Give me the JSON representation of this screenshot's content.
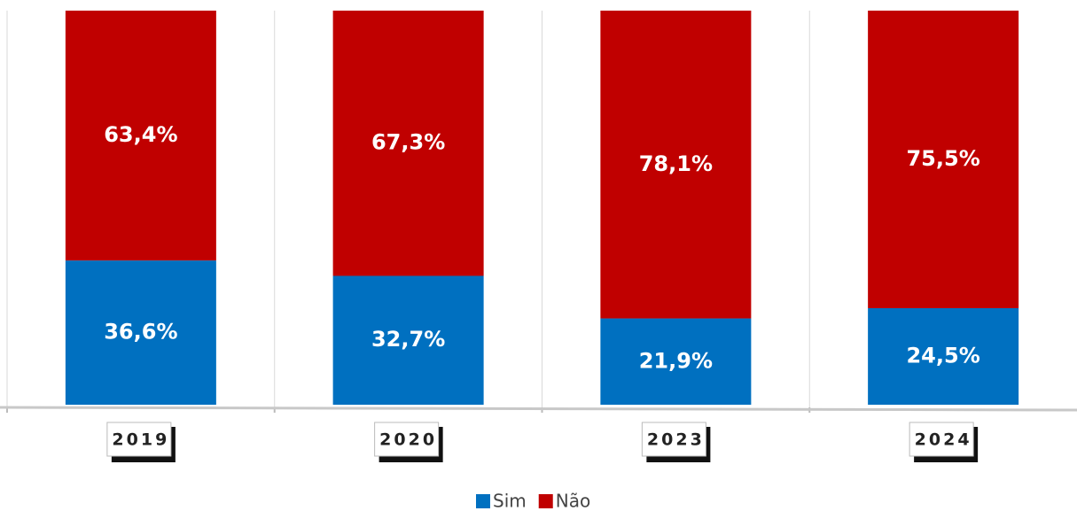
{
  "chart_data": {
    "type": "stacked_bar",
    "categories": [
      "2019",
      "2020",
      "2023",
      "2024"
    ],
    "series": [
      {
        "name": "Sim",
        "color": "#0070c0",
        "values": [
          36.6,
          32.7,
          21.9,
          24.5
        ],
        "value_labels": [
          "36,6%",
          "32,7%",
          "21,9%",
          "24,5%"
        ]
      },
      {
        "name": "Não",
        "color": "#c00000",
        "values": [
          63.4,
          67.3,
          78.1,
          75.5
        ],
        "value_labels": [
          "63,4%",
          "67,3%",
          "78,1%",
          "75,5%"
        ]
      }
    ],
    "ylim": [
      0,
      100
    ],
    "legend": "bottom"
  }
}
